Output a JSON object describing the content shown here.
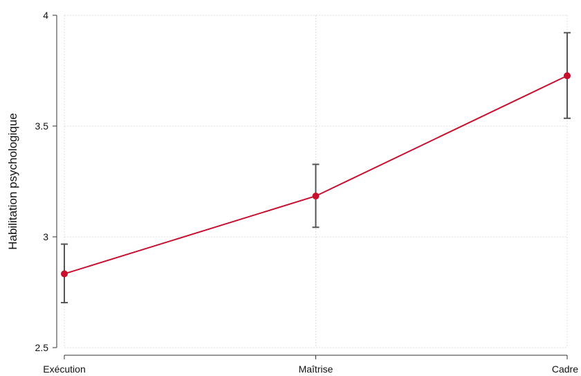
{
  "chart_data": {
    "type": "line",
    "categories": [
      "Exécution",
      "Maîtrise",
      "Cadre"
    ],
    "series": [
      {
        "values": [
          2.833,
          3.184,
          3.727
        ],
        "ci_lower": [
          2.703,
          3.043,
          3.535
        ],
        "ci_upper": [
          2.967,
          3.327,
          3.921
        ],
        "color": "#c8102e"
      }
    ],
    "error_bar_color": "#555555",
    "title": "",
    "xlabel": "",
    "ylabel": "Habilitation psychologique",
    "ylim": [
      2.5,
      4
    ],
    "yticks": [
      2.5,
      3,
      3.5,
      4
    ],
    "ytick_labels": [
      "2.5",
      "3",
      "3.5",
      "4"
    ],
    "grid": true,
    "legend": "none"
  }
}
